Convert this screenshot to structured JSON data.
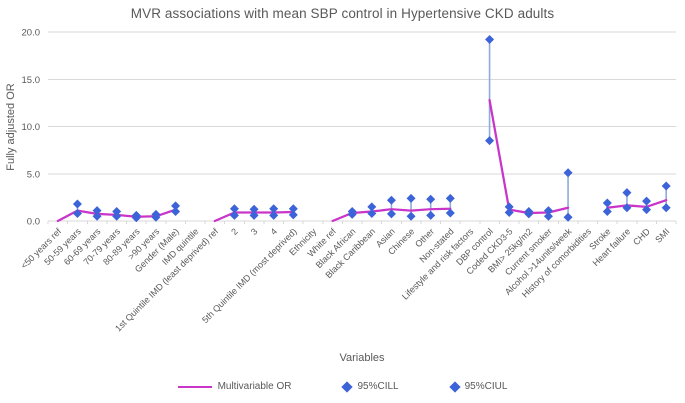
{
  "chart_data": {
    "type": "line",
    "title": "MVR associations with mean SBP control in Hypertensive CKD adults",
    "xlabel": "Variables",
    "ylabel": "Fully adjusted OR",
    "ylim": [
      0,
      20
    ],
    "yticks": [
      0,
      5,
      10,
      15,
      20
    ],
    "ytick_labels": [
      "0.0",
      "5.0",
      "10.0",
      "15.0",
      "20.0"
    ],
    "grid": true,
    "legend_position": "bottom",
    "legend": [
      "Multivariable OR",
      "95%CILL",
      "95%CIUL"
    ],
    "colors": {
      "or_line": "#c935c9",
      "ci_diamond": "#3c64d8",
      "ci_connector": "#8faadc",
      "gridline": "#d9d9d9",
      "tick": "#d9d9d9",
      "axis_text": "#595959",
      "title_text": "#595959"
    },
    "categories": [
      "<50 years ref",
      "50-59 years",
      "60-69 years",
      "70-79 years",
      "80-89 years",
      ">90  years",
      "Gender (Male)",
      "IMD quintile",
      "1st Quintile IMD (least deprived) ref",
      "2",
      "3",
      "4",
      "5th Quintile IMD (most deprived)",
      "Ethnicity",
      "White ref",
      "Black African",
      "Black Caribbean",
      "Asian",
      "Chinese",
      "Other",
      "Non-stated",
      "Lifestyle and risk factors",
      "DBP control",
      "Coded CKD3-5",
      "BMI> 25kg/m2",
      "Current smoker",
      "Alcohol >14units/week",
      "History of comorbidities",
      "Stroke",
      "Heart failure",
      "CHD",
      "SMI"
    ],
    "series": [
      {
        "name": "Multivariable OR",
        "values": [
          0,
          1.1,
          0.75,
          0.65,
          0.45,
          0.5,
          1.2,
          null,
          0,
          0.9,
          0.9,
          0.9,
          0.95,
          null,
          0,
          0.85,
          1.0,
          1.25,
          1.1,
          1.25,
          1.3,
          null,
          12.8,
          1.2,
          0.85,
          0.9,
          1.4,
          null,
          1.4,
          1.65,
          1.5,
          2.2
        ]
      },
      {
        "name": "95%CILL",
        "values": [
          null,
          0.8,
          0.5,
          0.5,
          0.35,
          0.4,
          1.0,
          null,
          null,
          0.6,
          0.6,
          0.6,
          0.65,
          null,
          null,
          0.7,
          0.8,
          0.75,
          0.5,
          0.6,
          0.85,
          null,
          8.5,
          0.9,
          0.75,
          0.5,
          0.4,
          null,
          1.0,
          1.4,
          1.2,
          1.4
        ]
      },
      {
        "name": "95%CIUL",
        "values": [
          null,
          1.8,
          1.1,
          1.0,
          0.6,
          0.7,
          1.6,
          null,
          null,
          1.3,
          1.25,
          1.3,
          1.3,
          null,
          null,
          1.0,
          1.5,
          2.2,
          2.4,
          2.3,
          2.4,
          null,
          19.2,
          1.5,
          1.0,
          1.1,
          5.1,
          null,
          1.9,
          3.0,
          2.1,
          3.7
        ]
      }
    ]
  }
}
